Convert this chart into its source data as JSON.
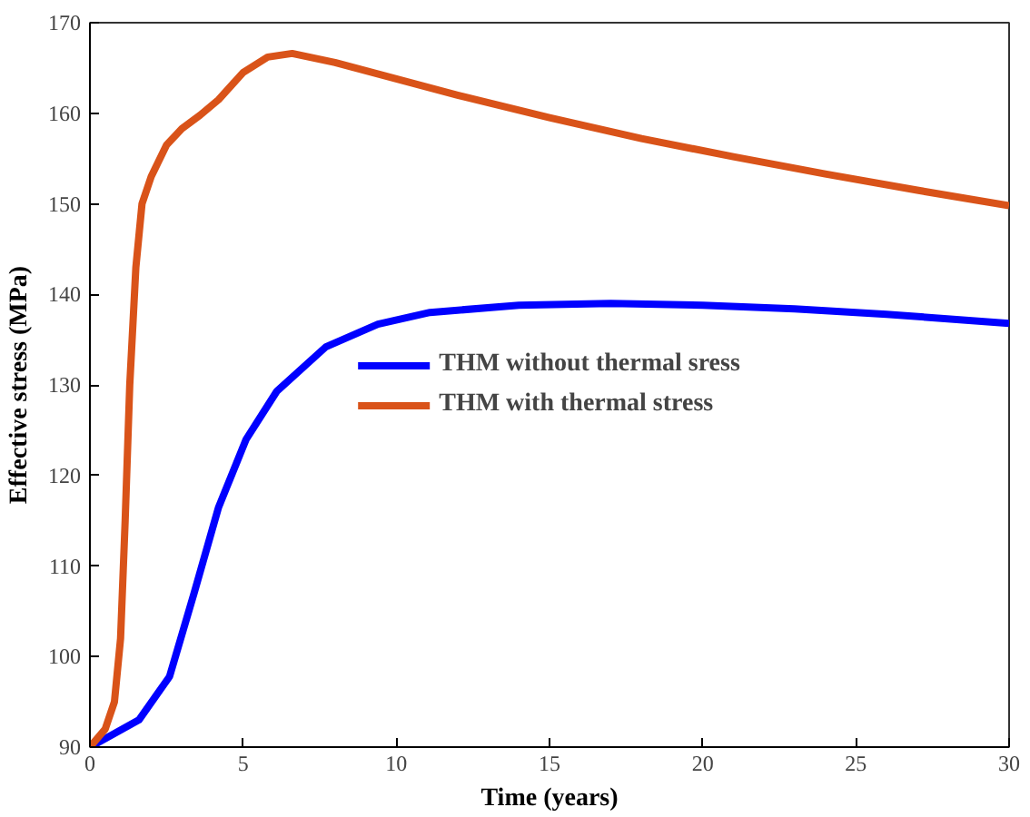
{
  "chart_data": {
    "type": "line",
    "xlabel": "Time (years)",
    "ylabel": "Effective stress (MPa)",
    "xlim": [
      0,
      30
    ],
    "ylim": [
      90,
      170
    ],
    "xticks": [
      0,
      5,
      10,
      15,
      20,
      25,
      30
    ],
    "yticks": [
      90,
      100,
      110,
      120,
      130,
      140,
      150,
      160,
      170
    ],
    "grid": false,
    "legend": "center",
    "line_style": "solid",
    "series": [
      {
        "name": "THM without thermal sress",
        "color": "#0000ff",
        "x": [
          0,
          1.6,
          2.6,
          3.4,
          4.2,
          5.1,
          6.1,
          7.7,
          9.4,
          11.1,
          14,
          17,
          20,
          23,
          26,
          30
        ],
        "values": [
          90,
          93,
          97.8,
          107,
          116.5,
          124,
          129.3,
          134.2,
          136.7,
          138,
          138.8,
          139,
          138.8,
          138.4,
          137.8,
          136.8
        ]
      },
      {
        "name": "THM with thermal stress",
        "color": "#d95319",
        "x": [
          0,
          0.5,
          0.8,
          1,
          1.15,
          1.3,
          1.5,
          1.7,
          2,
          2.5,
          3,
          3.6,
          4.2,
          5,
          5.8,
          6.6,
          8,
          10,
          12,
          15,
          18,
          21,
          24,
          27,
          30
        ],
        "values": [
          90,
          92,
          95,
          102,
          115,
          130,
          143,
          150,
          153,
          156.5,
          158.3,
          159.8,
          161.5,
          164.5,
          166.2,
          166.6,
          165.6,
          163.8,
          162,
          159.5,
          157.2,
          155.2,
          153.3,
          151.5,
          149.8
        ]
      }
    ]
  }
}
